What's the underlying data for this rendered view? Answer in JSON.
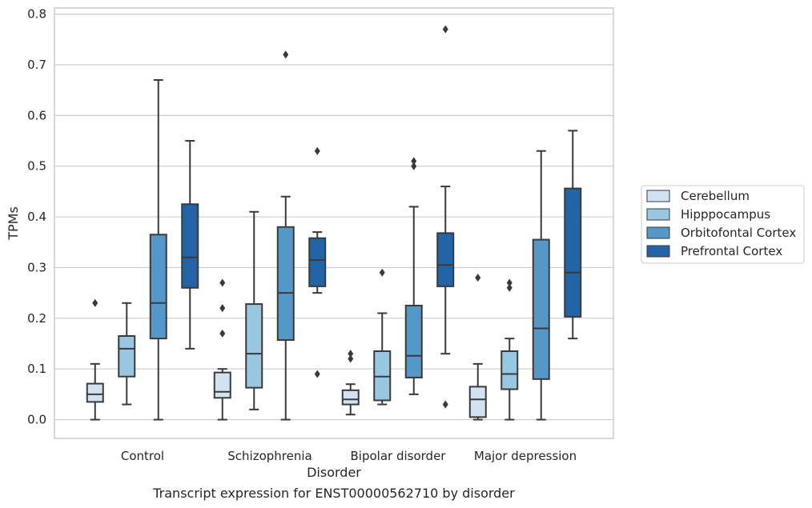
{
  "chart_data": {
    "type": "box",
    "caption": "Transcript expression for ENST00000562710 by disorder",
    "xlabel": "Disorder",
    "ylabel": "TPMs",
    "ylim": [
      -0.037,
      0.812
    ],
    "yticks": [
      0.0,
      0.1,
      0.2,
      0.3,
      0.4,
      0.5,
      0.6,
      0.7,
      0.8
    ],
    "ytick_labels": [
      "0.0",
      "0.1",
      "0.2",
      "0.3",
      "0.4",
      "0.5",
      "0.6",
      "0.7",
      "0.8"
    ],
    "grid": "horizontal",
    "legend_position": "right",
    "categories": [
      "Control",
      "Schizophrenia",
      "Bipolar disorder",
      "Major depression"
    ],
    "series": [
      {
        "name": "Cerebellum",
        "color": "#d1e2f2",
        "boxes": [
          {
            "whisker_low": 0.0,
            "q1": 0.035,
            "median": 0.05,
            "q3": 0.071,
            "whisker_high": 0.11,
            "outliers": [
              0.23
            ]
          },
          {
            "whisker_low": 0.0,
            "q1": 0.043,
            "median": 0.055,
            "q3": 0.093,
            "whisker_high": 0.1,
            "outliers": [
              0.17,
              0.22,
              0.27
            ]
          },
          {
            "whisker_low": 0.01,
            "q1": 0.03,
            "median": 0.04,
            "q3": 0.058,
            "whisker_high": 0.07,
            "outliers": [
              0.12,
              0.13
            ]
          },
          {
            "whisker_low": 0.0,
            "q1": 0.005,
            "median": 0.04,
            "q3": 0.065,
            "whisker_high": 0.11,
            "outliers": [
              0.28
            ]
          }
        ]
      },
      {
        "name": "Hipppocampus",
        "color": "#9ac7e0",
        "boxes": [
          {
            "whisker_low": 0.03,
            "q1": 0.085,
            "median": 0.14,
            "q3": 0.165,
            "whisker_high": 0.23,
            "outliers": []
          },
          {
            "whisker_low": 0.02,
            "q1": 0.063,
            "median": 0.13,
            "q3": 0.228,
            "whisker_high": 0.41,
            "outliers": []
          },
          {
            "whisker_low": 0.03,
            "q1": 0.038,
            "median": 0.085,
            "q3": 0.135,
            "whisker_high": 0.21,
            "outliers": [
              0.29
            ]
          },
          {
            "whisker_low": 0.0,
            "q1": 0.06,
            "median": 0.09,
            "q3": 0.135,
            "whisker_high": 0.16,
            "outliers": [
              0.26,
              0.27
            ]
          }
        ]
      },
      {
        "name": "Orbitofontal Cortex",
        "color": "#5597c6",
        "boxes": [
          {
            "whisker_low": 0.0,
            "q1": 0.16,
            "median": 0.23,
            "q3": 0.365,
            "whisker_high": 0.67,
            "outliers": []
          },
          {
            "whisker_low": 0.0,
            "q1": 0.157,
            "median": 0.25,
            "q3": 0.38,
            "whisker_high": 0.44,
            "outliers": [
              0.72
            ]
          },
          {
            "whisker_low": 0.05,
            "q1": 0.083,
            "median": 0.126,
            "q3": 0.225,
            "whisker_high": 0.42,
            "outliers": [
              0.5,
              0.51
            ]
          },
          {
            "whisker_low": 0.0,
            "q1": 0.08,
            "median": 0.18,
            "q3": 0.355,
            "whisker_high": 0.53,
            "outliers": []
          }
        ]
      },
      {
        "name": "Prefrontal Cortex",
        "color": "#2264a6",
        "boxes": [
          {
            "whisker_low": 0.14,
            "q1": 0.26,
            "median": 0.32,
            "q3": 0.425,
            "whisker_high": 0.55,
            "outliers": []
          },
          {
            "whisker_low": 0.25,
            "q1": 0.263,
            "median": 0.315,
            "q3": 0.358,
            "whisker_high": 0.37,
            "outliers": [
              0.09,
              0.53
            ]
          },
          {
            "whisker_low": 0.13,
            "q1": 0.263,
            "median": 0.305,
            "q3": 0.368,
            "whisker_high": 0.46,
            "outliers": [
              0.03,
              0.77
            ]
          },
          {
            "whisker_low": 0.16,
            "q1": 0.203,
            "median": 0.29,
            "q3": 0.456,
            "whisker_high": 0.57,
            "outliers": []
          }
        ]
      }
    ]
  }
}
